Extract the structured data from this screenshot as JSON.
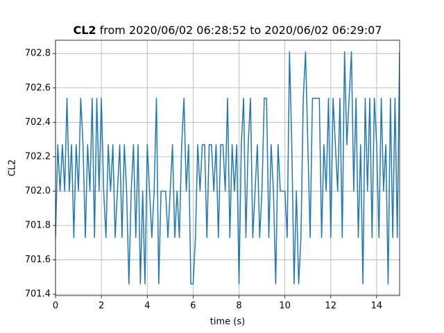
{
  "chart_data": {
    "type": "line",
    "title_bold": "CL2",
    "title": "from 2020/06/02 06:28:52 to 2020/06/02 06:29:07",
    "xlabel": "time (s)",
    "ylabel": "CL2",
    "color": "#1f77b4",
    "grid": true,
    "xlim": [
      0,
      15
    ],
    "ylim": [
      701.3925,
      702.8775
    ],
    "xticks": [
      0,
      2,
      4,
      6,
      8,
      10,
      12,
      14
    ],
    "yticks": [
      701.4,
      701.6,
      701.8,
      {
        "value": 702,
        "label": "702.0"
      },
      702.2,
      702.4,
      702.6,
      702.8
    ],
    "x": [
      0,
      0.1,
      0.2,
      0.3,
      0.4,
      0.5,
      0.6,
      0.7,
      0.8,
      0.9,
      1,
      1.1,
      1.2,
      1.3,
      1.4,
      1.5,
      1.6,
      1.7,
      1.8,
      1.9,
      2,
      2.1,
      2.2,
      2.3,
      2.4,
      2.5,
      2.6,
      2.7,
      2.8,
      2.9,
      3,
      3.1,
      3.2,
      3.3,
      3.4,
      3.5,
      3.6,
      3.7,
      3.8,
      3.9,
      4,
      4.1,
      4.2,
      4.3,
      4.4,
      4.5,
      4.6,
      4.7,
      4.8,
      4.9,
      5,
      5.1,
      5.2,
      5.3,
      5.4,
      5.5,
      5.6,
      5.7,
      5.8,
      5.9,
      6,
      6.1,
      6.2,
      6.3,
      6.4,
      6.5,
      6.6,
      6.7,
      6.8,
      6.9,
      7,
      7.1,
      7.2,
      7.3,
      7.4,
      7.5,
      7.6,
      7.7,
      7.8,
      7.9,
      8,
      8.1,
      8.2,
      8.3,
      8.4,
      8.5,
      8.6,
      8.7,
      8.8,
      8.9,
      9,
      9.1,
      9.2,
      9.3,
      9.4,
      9.5,
      9.6,
      9.7,
      9.8,
      9.9,
      10,
      10.1,
      10.2,
      10.3,
      10.4,
      10.5,
      10.6,
      10.7,
      10.8,
      10.9,
      11,
      11.1,
      11.2,
      11.3,
      11.4,
      11.5,
      11.6,
      11.7,
      11.8,
      11.9,
      12,
      12.1,
      12.2,
      12.3,
      12.4,
      12.5,
      12.6,
      12.7,
      12.8,
      12.9,
      13,
      13.1,
      13.2,
      13.3,
      13.4,
      13.5,
      13.6,
      13.7,
      13.8,
      13.9,
      14,
      14.1,
      14.2,
      14.3,
      14.4,
      14.5,
      14.6,
      14.7,
      14.8,
      14.9,
      15
    ],
    "values": [
      701.73,
      702.27,
      702,
      702.27,
      702,
      702.54,
      702,
      702.27,
      701.73,
      702.27,
      702,
      702.54,
      702.27,
      701.73,
      702.27,
      702,
      702.54,
      701.73,
      702.54,
      702,
      702.54,
      702,
      701.73,
      702.27,
      702,
      702.27,
      701.73,
      702,
      702.27,
      701.73,
      702.27,
      702,
      701.46,
      702,
      702.27,
      701.73,
      702.27,
      701.46,
      702,
      701.46,
      702.27,
      702,
      701.73,
      702,
      702.54,
      701.46,
      702,
      702,
      702,
      701.73,
      702,
      702.27,
      701.73,
      702,
      701.73,
      702.27,
      702.54,
      702,
      702.27,
      701.46,
      701.46,
      701.73,
      702.27,
      702,
      702.27,
      702.27,
      701.73,
      702.27,
      702.27,
      702,
      702.27,
      701.73,
      702.27,
      702.27,
      702,
      702.54,
      701.73,
      702.27,
      702,
      702.27,
      701.46,
      702.27,
      702.54,
      701.73,
      702.27,
      702.54,
      701.73,
      702,
      702.27,
      701.73,
      702,
      702.54,
      702.54,
      701.73,
      702.27,
      702,
      701.46,
      702.27,
      702,
      702,
      702,
      701.73,
      702.81,
      702.27,
      701.46,
      702,
      701.46,
      701.73,
      702.54,
      702.81,
      702.27,
      701.73,
      702.54,
      702.54,
      702.54,
      702.54,
      701.73,
      702.27,
      702,
      702.54,
      701.73,
      702.54,
      702.27,
      702,
      702.54,
      701.73,
      702.81,
      702.27,
      702.54,
      702.81,
      702,
      702.54,
      701.73,
      702.27,
      701.46,
      702.54,
      702,
      702.54,
      701.73,
      702.54,
      702.27,
      701.73,
      702.54,
      702,
      702.27,
      701.46,
      702.54,
      701.73,
      702.54,
      701.73,
      702.81
    ]
  }
}
